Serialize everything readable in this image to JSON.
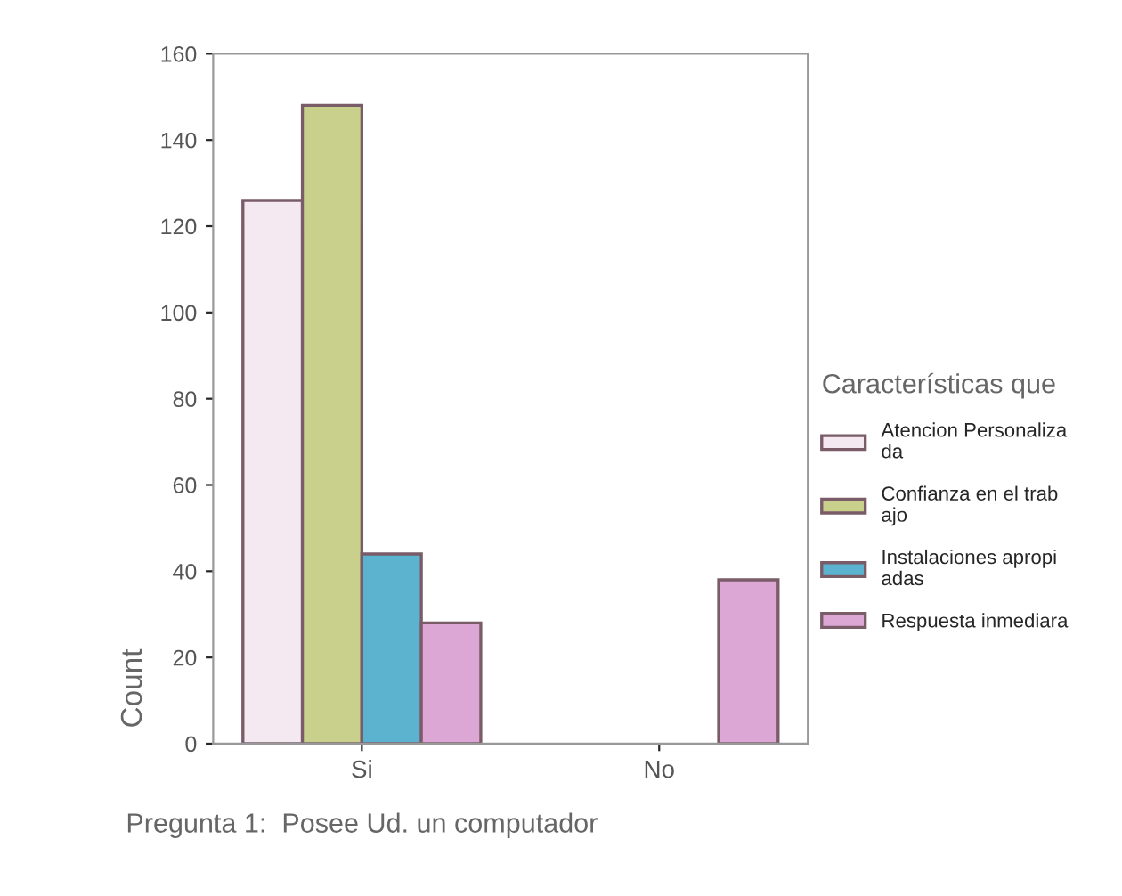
{
  "chart_data": {
    "type": "bar",
    "xlabel": "Pregunta 1:  Posee Ud. un computador",
    "ylabel": "Count",
    "legend_title": "Características que",
    "categories": [
      "Si",
      "No"
    ],
    "series": [
      {
        "name": "Atencion Personaliza\nda",
        "color": "#f4e8f1",
        "values": [
          126,
          null
        ]
      },
      {
        "name": "Confianza en el trab\najo",
        "color": "#c9d08c",
        "values": [
          148,
          null
        ]
      },
      {
        "name": "Instalaciones apropi\nadas",
        "color": "#5bb3d0",
        "values": [
          44,
          null
        ]
      },
      {
        "name": "Respuesta inmediara",
        "color": "#dca7d4",
        "values": [
          28,
          38
        ]
      }
    ],
    "ylim": [
      0,
      160
    ],
    "yticks": [
      0,
      20,
      40,
      60,
      80,
      100,
      120,
      140,
      160
    ],
    "grid": false,
    "legend": "right"
  }
}
